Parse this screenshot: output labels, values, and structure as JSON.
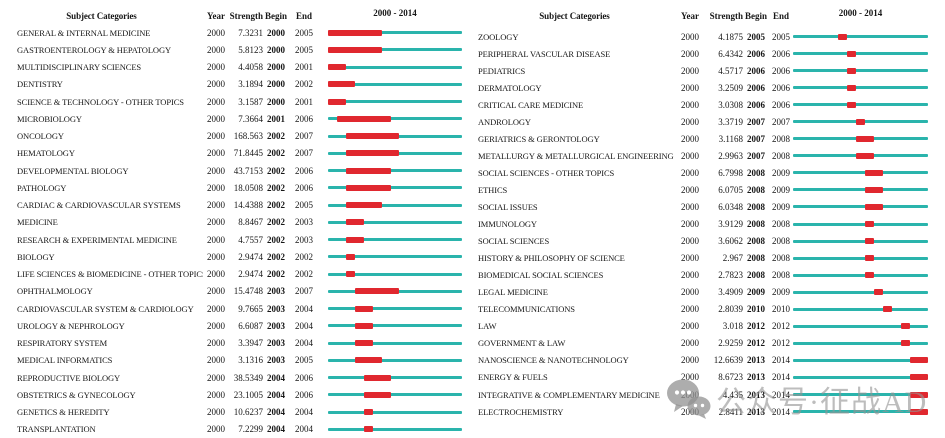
{
  "colors": {
    "track": "#2ab4ac",
    "burst": "#e0282f"
  },
  "watermark": {
    "text": "公众号·征战AD",
    "icon": "wechat-chat-bubbles-icon"
  },
  "chart_data": [
    {
      "type": "table",
      "panel": "left",
      "headers": {
        "category": "Subject Categories",
        "year": "Year",
        "strength": "Strength",
        "begin": "Begin",
        "end": "End",
        "timeline": "2000 - 2014"
      },
      "timeline": {
        "start": 2000,
        "end": 2014
      },
      "rows": [
        {
          "category": "GENERAL & INTERNAL MEDICINE",
          "year": "2000",
          "strength": "7.3231",
          "begin": 2000,
          "end": 2005
        },
        {
          "category": "GASTROENTEROLOGY & HEPATOLOGY",
          "year": "2000",
          "strength": "5.8123",
          "begin": 2000,
          "end": 2005
        },
        {
          "category": "MULTIDISCIPLINARY SCIENCES",
          "year": "2000",
          "strength": "4.4058",
          "begin": 2000,
          "end": 2001
        },
        {
          "category": "DENTISTRY",
          "year": "2000",
          "strength": "3.1894",
          "begin": 2000,
          "end": 2002
        },
        {
          "category": "SCIENCE & TECHNOLOGY - OTHER TOPICS",
          "year": "2000",
          "strength": "3.1587",
          "begin": 2000,
          "end": 2001
        },
        {
          "category": "MICROBIOLOGY",
          "year": "2000",
          "strength": "7.3664",
          "begin": 2001,
          "end": 2006
        },
        {
          "category": "ONCOLOGY",
          "year": "2000",
          "strength": "168.563",
          "begin": 2002,
          "end": 2007
        },
        {
          "category": "HEMATOLOGY",
          "year": "2000",
          "strength": "71.8445",
          "begin": 2002,
          "end": 2007
        },
        {
          "category": "DEVELOPMENTAL BIOLOGY",
          "year": "2000",
          "strength": "43.7153",
          "begin": 2002,
          "end": 2006
        },
        {
          "category": "PATHOLOGY",
          "year": "2000",
          "strength": "18.0508",
          "begin": 2002,
          "end": 2006
        },
        {
          "category": "CARDIAC & CARDIOVASCULAR SYSTEMS",
          "year": "2000",
          "strength": "14.4388",
          "begin": 2002,
          "end": 2005
        },
        {
          "category": "MEDICINE",
          "year": "2000",
          "strength": "8.8467",
          "begin": 2002,
          "end": 2003
        },
        {
          "category": "RESEARCH & EXPERIMENTAL MEDICINE",
          "year": "2000",
          "strength": "4.7557",
          "begin": 2002,
          "end": 2003
        },
        {
          "category": "BIOLOGY",
          "year": "2000",
          "strength": "2.9474",
          "begin": 2002,
          "end": 2002
        },
        {
          "category": "LIFE SCIENCES & BIOMEDICINE - OTHER TOPICS",
          "year": "2000",
          "strength": "2.9474",
          "begin": 2002,
          "end": 2002
        },
        {
          "category": "OPHTHALMOLOGY",
          "year": "2000",
          "strength": "15.4748",
          "begin": 2003,
          "end": 2007
        },
        {
          "category": "CARDIOVASCULAR SYSTEM & CARDIOLOGY",
          "year": "2000",
          "strength": "9.7665",
          "begin": 2003,
          "end": 2004
        },
        {
          "category": "UROLOGY & NEPHROLOGY",
          "year": "2000",
          "strength": "6.6087",
          "begin": 2003,
          "end": 2004
        },
        {
          "category": "RESPIRATORY SYSTEM",
          "year": "2000",
          "strength": "3.3947",
          "begin": 2003,
          "end": 2004
        },
        {
          "category": "MEDICAL INFORMATICS",
          "year": "2000",
          "strength": "3.1316",
          "begin": 2003,
          "end": 2005
        },
        {
          "category": "REPRODUCTIVE BIOLOGY",
          "year": "2000",
          "strength": "38.5349",
          "begin": 2004,
          "end": 2006
        },
        {
          "category": "OBSTETRICS & GYNECOLOGY",
          "year": "2000",
          "strength": "23.1005",
          "begin": 2004,
          "end": 2006
        },
        {
          "category": "GENETICS & HEREDITY",
          "year": "2000",
          "strength": "10.6237",
          "begin": 2004,
          "end": 2004
        },
        {
          "category": "TRANSPLANTATION",
          "year": "2000",
          "strength": "7.2299",
          "begin": 2004,
          "end": 2004
        }
      ]
    },
    {
      "type": "table",
      "panel": "right",
      "headers": {
        "category": "Subject Categories",
        "year": "Year",
        "strength": "Strength",
        "begin": "Begin",
        "end": "End",
        "timeline": "2000 - 2014"
      },
      "timeline": {
        "start": 2000,
        "end": 2014
      },
      "rows": [
        {
          "category": "ZOOLOGY",
          "year": "2000",
          "strength": "4.1875",
          "begin": 2005,
          "end": 2005
        },
        {
          "category": "PERIPHERAL VASCULAR DISEASE",
          "year": "2000",
          "strength": "6.4342",
          "begin": 2006,
          "end": 2006
        },
        {
          "category": "PEDIATRICS",
          "year": "2000",
          "strength": "4.5717",
          "begin": 2006,
          "end": 2006
        },
        {
          "category": "DERMATOLOGY",
          "year": "2000",
          "strength": "3.2509",
          "begin": 2006,
          "end": 2006
        },
        {
          "category": "CRITICAL CARE MEDICINE",
          "year": "2000",
          "strength": "3.0308",
          "begin": 2006,
          "end": 2006
        },
        {
          "category": "ANDROLOGY",
          "year": "2000",
          "strength": "3.3719",
          "begin": 2007,
          "end": 2007
        },
        {
          "category": "GERIATRICS & GERONTOLOGY",
          "year": "2000",
          "strength": "3.1168",
          "begin": 2007,
          "end": 2008
        },
        {
          "category": "METALLURGY & METALLURGICAL ENGINEERING",
          "year": "2000",
          "strength": "2.9963",
          "begin": 2007,
          "end": 2008
        },
        {
          "category": "SOCIAL SCIENCES - OTHER TOPICS",
          "year": "2000",
          "strength": "6.7998",
          "begin": 2008,
          "end": 2009
        },
        {
          "category": "ETHICS",
          "year": "2000",
          "strength": "6.0705",
          "begin": 2008,
          "end": 2009
        },
        {
          "category": "SOCIAL ISSUES",
          "year": "2000",
          "strength": "6.0348",
          "begin": 2008,
          "end": 2009
        },
        {
          "category": "IMMUNOLOGY",
          "year": "2000",
          "strength": "3.9129",
          "begin": 2008,
          "end": 2008
        },
        {
          "category": "SOCIAL SCIENCES",
          "year": "2000",
          "strength": "3.6062",
          "begin": 2008,
          "end": 2008
        },
        {
          "category": "HISTORY & PHILOSOPHY OF SCIENCE",
          "year": "2000",
          "strength": "2.967",
          "begin": 2008,
          "end": 2008
        },
        {
          "category": "BIOMEDICAL SOCIAL SCIENCES",
          "year": "2000",
          "strength": "2.7823",
          "begin": 2008,
          "end": 2008
        },
        {
          "category": "LEGAL MEDICINE",
          "year": "2000",
          "strength": "3.4909",
          "begin": 2009,
          "end": 2009
        },
        {
          "category": "TELECOMMUNICATIONS",
          "year": "2000",
          "strength": "2.8039",
          "begin": 2010,
          "end": 2010
        },
        {
          "category": "LAW",
          "year": "2000",
          "strength": "3.018",
          "begin": 2012,
          "end": 2012
        },
        {
          "category": "GOVERNMENT & LAW",
          "year": "2000",
          "strength": "2.9259",
          "begin": 2012,
          "end": 2012
        },
        {
          "category": "NANOSCIENCE & NANOTECHNOLOGY",
          "year": "2000",
          "strength": "12.6639",
          "begin": 2013,
          "end": 2014
        },
        {
          "category": "ENERGY & FUELS",
          "year": "2000",
          "strength": "8.6723",
          "begin": 2013,
          "end": 2014
        },
        {
          "category": "INTEGRATIVE & COMPLEMENTARY MEDICINE",
          "year": "2000",
          "strength": "4.435",
          "begin": 2013,
          "end": 2014
        },
        {
          "category": "ELECTROCHEMISTRY",
          "year": "2000",
          "strength": "2.8411",
          "begin": 2013,
          "end": 2014
        }
      ]
    }
  ]
}
